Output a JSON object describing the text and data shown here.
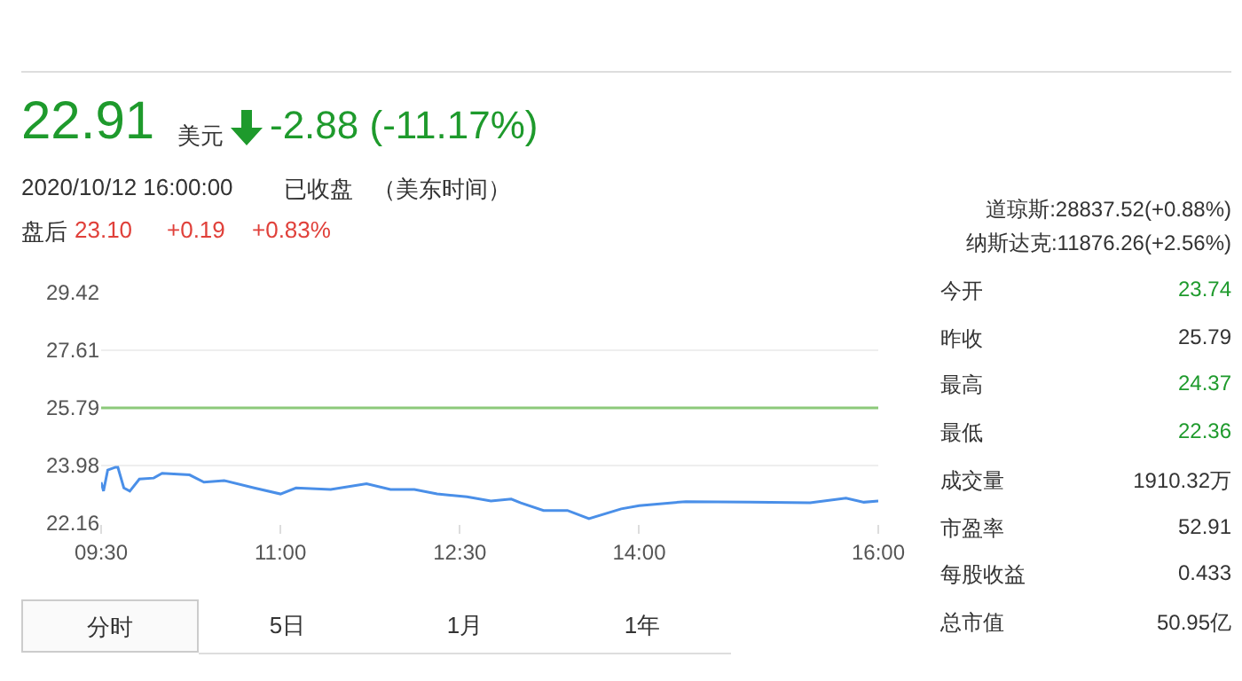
{
  "chart_data": {
    "type": "line",
    "x": [
      9.5,
      9.52,
      9.555,
      9.62,
      9.64,
      9.69,
      9.74,
      9.82,
      9.94,
      10.01,
      10.24,
      10.36,
      10.53,
      10.78,
      11.0,
      11.13,
      11.42,
      11.72,
      11.92,
      12.12,
      12.31,
      12.56,
      12.76,
      12.93,
      13.01,
      13.2,
      13.4,
      13.58,
      13.85,
      14.0,
      14.39,
      14.93,
      15.43,
      15.73,
      15.88,
      16.0
    ],
    "series": [
      {
        "color": "#4a8fe8",
        "values": [
          23.45,
          23.17,
          23.83,
          23.92,
          23.92,
          23.27,
          23.17,
          23.55,
          23.58,
          23.73,
          23.68,
          23.45,
          23.5,
          23.27,
          23.08,
          23.27,
          23.22,
          23.4,
          23.22,
          23.22,
          23.08,
          22.99,
          22.86,
          22.92,
          22.8,
          22.56,
          22.56,
          22.3,
          22.61,
          22.71,
          22.84,
          22.82,
          22.8,
          22.95,
          22.82,
          22.86
        ]
      }
    ],
    "xlim": [
      9.5,
      16
    ],
    "xticks": [
      {
        "value": 9.5,
        "label": "09:30"
      },
      {
        "value": 11,
        "label": "11:00"
      },
      {
        "value": 12.5,
        "label": "12:30"
      },
      {
        "value": 14,
        "label": "14:00"
      },
      {
        "value": 16,
        "label": "16:00"
      }
    ],
    "ylim": [
      22.16,
      29.42
    ],
    "yticks": [
      22.16,
      23.98,
      25.79,
      27.61,
      29.42
    ],
    "grid": "y",
    "marker": "none",
    "line_style": "solid",
    "ref_lines": [
      {
        "axis": "y",
        "value": 25.79,
        "color": "#8cc97a"
      }
    ],
    "annotations": [
      "22.91",
      "美元",
      "-2.88 (-11.17%)",
      "2020/10/12 16:00:00",
      "已收盘",
      "（美东时间）",
      "盘后",
      "23.10",
      "+0.19",
      "+0.83%",
      "道琼斯:28837.52(+0.88%)",
      "纳斯达克:11876.26(+2.56%)",
      "今开",
      "23.74",
      "昨收",
      "25.79",
      "最高",
      "24.37",
      "最低",
      "22.36",
      "成交量",
      "1910.32万",
      "市盈率",
      "52.91",
      "每股收益",
      "0.433",
      "总市值",
      "50.95亿",
      "分时",
      "5日",
      "1月",
      "1年"
    ]
  }
}
